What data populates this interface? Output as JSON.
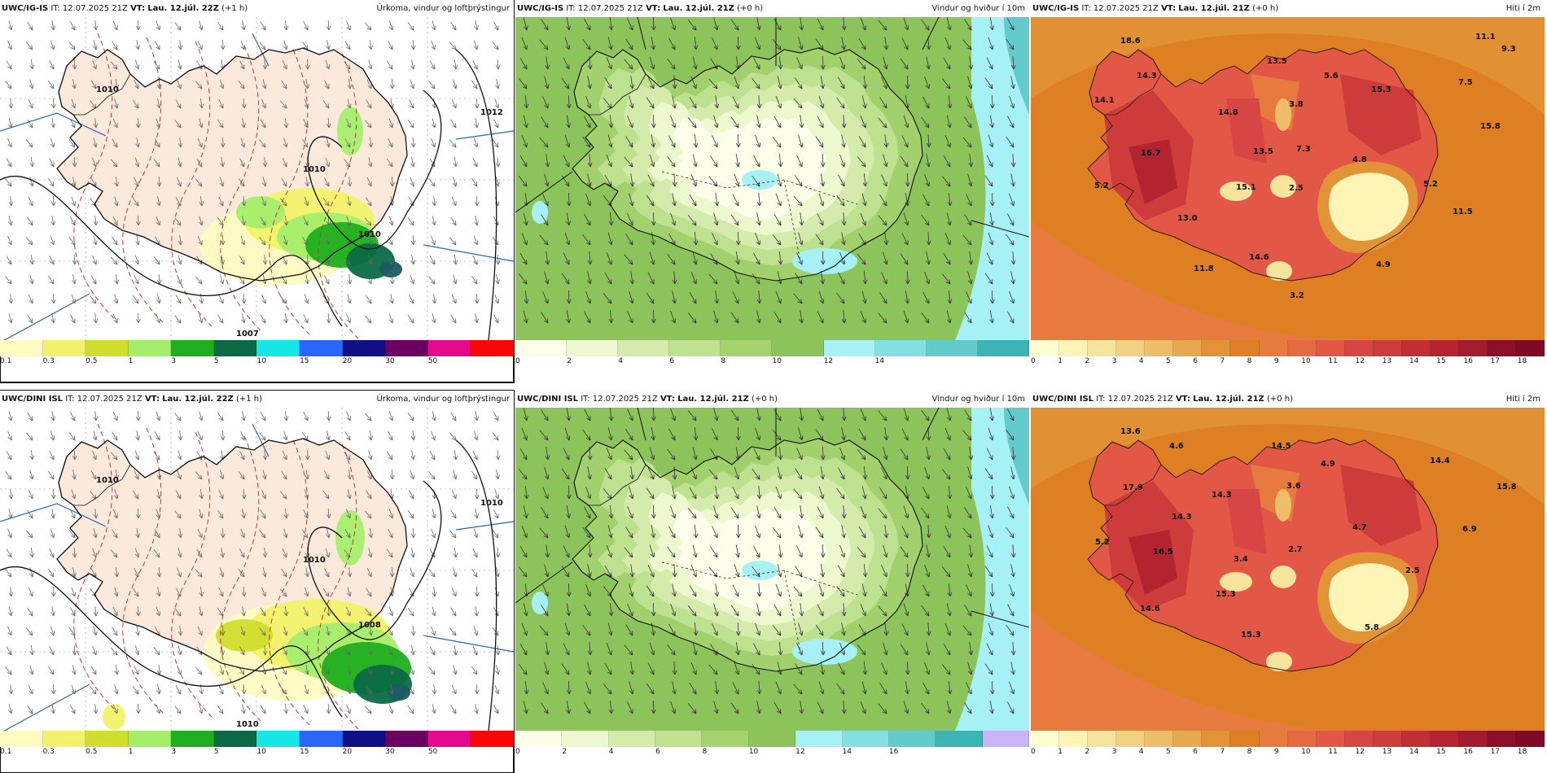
{
  "rows": [
    {
      "model": "UWC/IG-IS",
      "panels": [
        {
          "kind": "precip",
          "vt": "Lau. 12.júl. 22Z",
          "lead": "(+1 h)",
          "title": "Úrkoma, vindur og loftþrýstingur",
          "pressure_labels": [
            "1010",
            "1010",
            "1012",
            "1010",
            "1007"
          ],
          "colorbar": {
            "colors": [
              "#fffbc1",
              "#f2f26a",
              "#d0dd2c",
              "#a5ee6c",
              "#1fae1f",
              "#0b6a45",
              "#15e7e6",
              "#2965ff",
              "#0f0f86",
              "#6c0062",
              "#e50a8b",
              "#fb0606"
            ],
            "ticks": [
              "0.1",
              "0.3",
              "0.5",
              "1",
              "3",
              "5",
              "10",
              "15",
              "20",
              "30",
              "50"
            ]
          }
        },
        {
          "kind": "wind",
          "vt": "Lau. 12.júl. 21Z",
          "lead": "(+0 h)",
          "title": "Vindur og hviður í 10m",
          "colorbar": {
            "colors": [
              "#fcfee9",
              "#eef8cf",
              "#d4ebab",
              "#bfe190",
              "#a4d26f",
              "#8cc35a",
              "#a6f1f5",
              "#84dfe0",
              "#63cbcc",
              "#3cb4b3"
            ],
            "ticks": [
              "0",
              "2",
              "4",
              "6",
              "8",
              "10",
              "12",
              "14"
            ]
          }
        },
        {
          "kind": "temp",
          "vt": "Lau. 12.júl. 21Z",
          "lead": "(+0 h)",
          "title": "Hiti í 2m",
          "values": [
            "18.6",
            "14.3",
            "14.1",
            "13.5",
            "5.6",
            "14.8",
            "3.8",
            "15.3",
            "7.5",
            "11.1",
            "9.3",
            "15.8",
            "7.3",
            "13.5",
            "16.7",
            "4.8",
            "5.2",
            "15.1",
            "2.5",
            "5.2",
            "11.5",
            "13.0",
            "14.6",
            "11.8",
            "4.9",
            "3.2"
          ],
          "colorbar": {
            "colors": [
              "#ffffd0",
              "#fdf4b5",
              "#f7e49c",
              "#f3d182",
              "#eebd69",
              "#e6a94f",
              "#e19336",
              "#df7f23",
              "#e67a3f",
              "#e46a42",
              "#e25745",
              "#d84545",
              "#cd3b3b",
              "#c12f35",
              "#b42330",
              "#a21c2d",
              "#8b0f29",
              "#800a25"
            ],
            "ticks": [
              "0",
              "1",
              "2",
              "3",
              "4",
              "5",
              "6",
              "7",
              "8",
              "9",
              "10",
              "11",
              "12",
              "13",
              "14",
              "15",
              "16",
              "17",
              "18"
            ]
          }
        }
      ]
    },
    {
      "model": "UWC/DINI ISL",
      "panels": [
        {
          "kind": "precip",
          "vt": "Lau. 12.júl. 22Z",
          "lead": "(+1 h)",
          "title": "Úrkoma, vindur og loftþrýstingur",
          "pressure_labels": [
            "1010",
            "1010",
            "1010",
            "1008",
            "1010"
          ],
          "colorbar": {
            "colors": [
              "#fffbc1",
              "#f2f26a",
              "#d0dd2c",
              "#a5ee6c",
              "#1fae1f",
              "#0b6a45",
              "#15e7e6",
              "#2965ff",
              "#0f0f86",
              "#6c0062",
              "#e50a8b",
              "#fb0606"
            ],
            "ticks": [
              "0.1",
              "0.3",
              "0.5",
              "1",
              "3",
              "5",
              "10",
              "15",
              "20",
              "30",
              "50"
            ]
          }
        },
        {
          "kind": "wind",
          "vt": "Lau. 12.júl. 21Z",
          "lead": "(+0 h)",
          "title": "Vindur og hviður í 10m",
          "colorbar": {
            "colors": [
              "#fcfee9",
              "#eef8cf",
              "#d4ebab",
              "#bfe190",
              "#a4d26f",
              "#8cc35a",
              "#a6f1f5",
              "#84dfe0",
              "#63cbcc",
              "#3cb4b3",
              "#cbb4f5"
            ],
            "ticks": [
              "0",
              "2",
              "4",
              "6",
              "8",
              "10",
              "12",
              "14",
              "16"
            ]
          }
        },
        {
          "kind": "temp",
          "vt": "Lau. 12.júl. 21Z",
          "lead": "(+0 h)",
          "title": "Hiti í 2m",
          "values": [
            "13.6",
            "4.6",
            "14.5",
            "4.9",
            "14.4",
            "15.8",
            "17.9",
            "14.3",
            "3.6",
            "14.3",
            "4.7",
            "6.9",
            "5.2",
            "16.5",
            "3.4",
            "2.7",
            "2.5",
            "15.3",
            "14.6",
            "5.8",
            "15.3"
          ],
          "colorbar": {
            "colors": [
              "#ffffd0",
              "#fdf4b5",
              "#f7e49c",
              "#f3d182",
              "#eebd69",
              "#e6a94f",
              "#e19336",
              "#df7f23",
              "#e67a3f",
              "#e46a42",
              "#e25745",
              "#d84545",
              "#cd3b3b",
              "#c12f35",
              "#b42330",
              "#a21c2d",
              "#8b0f29",
              "#800a25"
            ],
            "ticks": [
              "0",
              "1",
              "2",
              "3",
              "4",
              "5",
              "6",
              "7",
              "8",
              "9",
              "10",
              "11",
              "12",
              "13",
              "14",
              "15",
              "16",
              "17",
              "18"
            ]
          }
        }
      ]
    }
  ],
  "ui": {
    "it_label": "IT:",
    "it_time": "12.07.2025 21Z",
    "vt_label": "VT:"
  }
}
